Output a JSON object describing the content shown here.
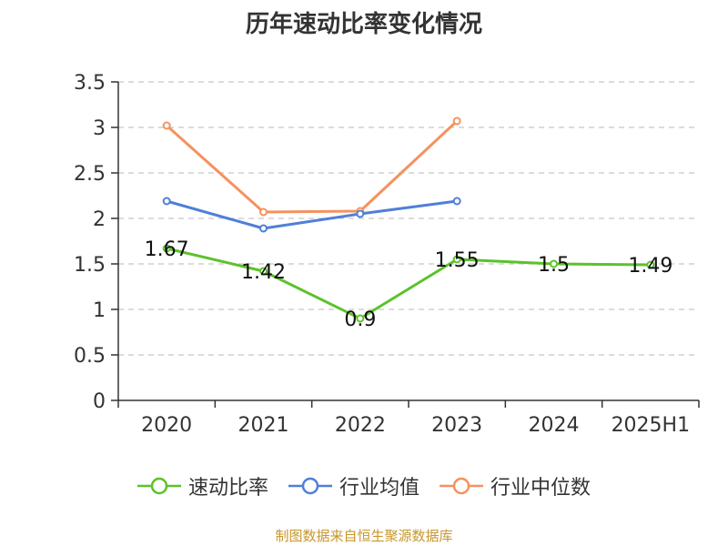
{
  "title": "历年速动比率变化情况",
  "source": "制图数据来自恒生聚源数据库",
  "chart_data": {
    "type": "line",
    "title": "历年速动比率变化情况",
    "categories": [
      "2020",
      "2021",
      "2022",
      "2023",
      "2024",
      "2025H1"
    ],
    "ylim": [
      0,
      3.5
    ],
    "y_ticks": [
      "0",
      "0.5",
      "1",
      "1.5",
      "2",
      "2.5",
      "3",
      "3.5"
    ],
    "grid": true,
    "legend_position": "bottom",
    "series": [
      {
        "name": "速动比率",
        "color": "#5cc22a",
        "values": [
          1.67,
          1.42,
          0.9,
          1.55,
          1.5,
          1.49
        ],
        "labels": [
          "1.67",
          "1.42",
          "0.9",
          "1.55",
          "1.5",
          "1.49"
        ]
      },
      {
        "name": "行业均值",
        "color": "#4f7fd8",
        "values": [
          2.19,
          1.89,
          2.05,
          2.19,
          null,
          null
        ]
      },
      {
        "name": "行业中位数",
        "color": "#f5925e",
        "values": [
          3.02,
          2.07,
          2.08,
          3.07,
          null,
          null
        ]
      }
    ]
  }
}
